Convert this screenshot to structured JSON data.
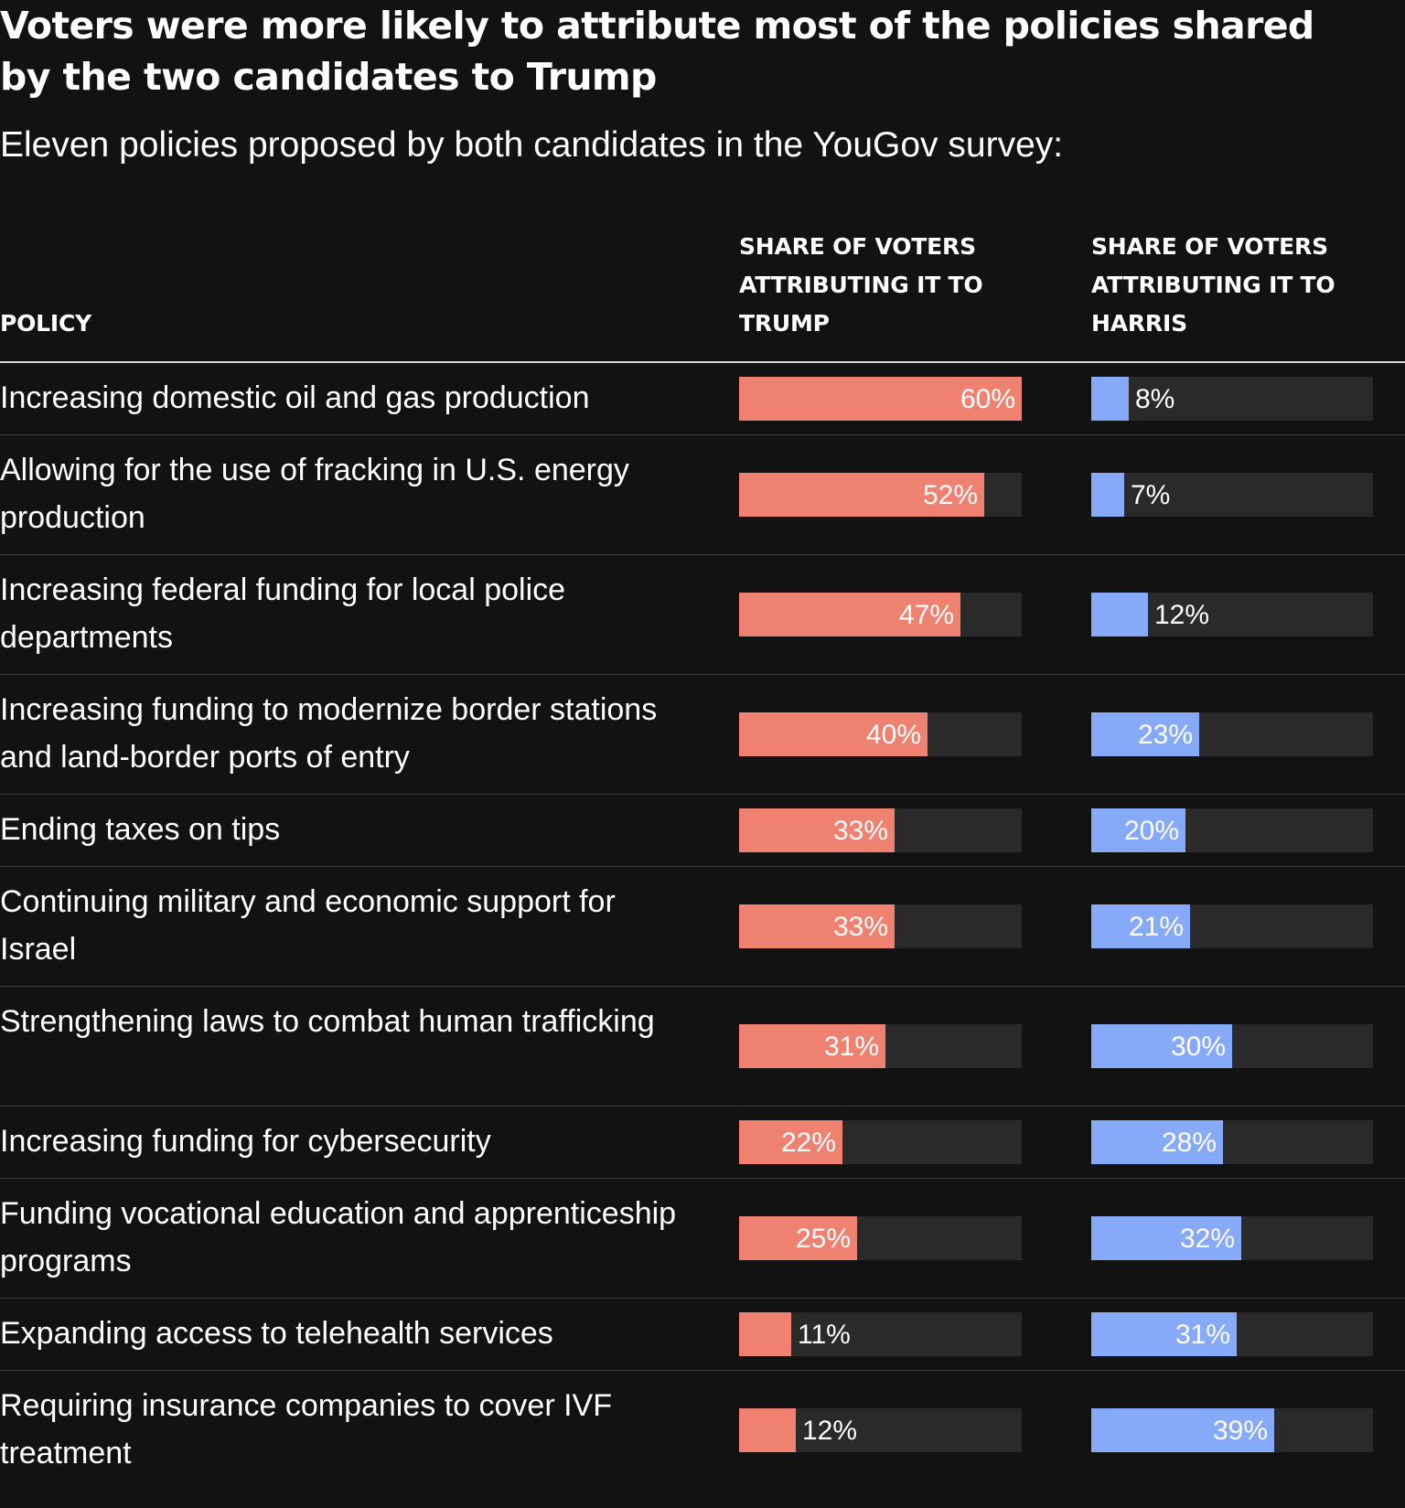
{
  "title": "Voters were more likely to attribute most of the policies shared by the two candidates to Trump",
  "subtitle": "Eleven policies proposed by both candidates in the YouGov survey:",
  "columns": {
    "policy": "POLICY",
    "trump": "SHARE OF VOTERS ATTRIBUTING IT TO TRUMP",
    "harris": "SHARE OF VOTERS ATTRIBUTING IT TO HARRIS"
  },
  "colors": {
    "background": "#121212",
    "trump": "#ee8170",
    "harris": "#86aaf7",
    "track": "#2a2a2a"
  },
  "chart_data": {
    "type": "bar",
    "orientation": "horizontal",
    "value_format": "percent",
    "xlim": [
      0,
      60
    ],
    "categories": [
      "Increasing domestic oil and gas production",
      "Allowing for the use of fracking in U.S. energy production",
      "Increasing federal funding for local police departments",
      "Increasing funding to modernize border stations and land-border ports of entry",
      "Ending taxes on tips",
      "Continuing military and economic support for Israel",
      "Strengthening laws to combat human trafficking",
      "Increasing funding for cybersecurity",
      "Funding vocational education and apprenticeship programs",
      "Expanding access to telehealth services",
      "Requiring insurance companies to cover IVF treatment"
    ],
    "series": [
      {
        "key": "trump",
        "values": [
          60,
          52,
          47,
          40,
          33,
          33,
          31,
          22,
          25,
          11,
          12
        ]
      },
      {
        "key": "harris",
        "values": [
          8,
          7,
          12,
          23,
          20,
          21,
          30,
          28,
          32,
          31,
          39
        ]
      }
    ]
  }
}
